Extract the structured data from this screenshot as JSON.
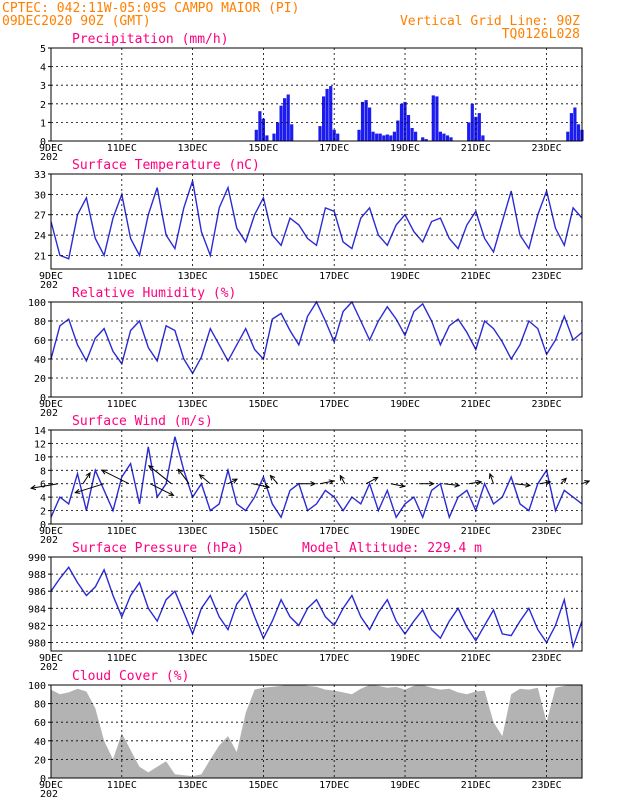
{
  "header": {
    "line1_left": "CPTEC:  042:11W-05:09S  CAMPO MAIOR (PI)",
    "line2_left": "09DEC2020 90Z (GMT)",
    "line2_right": "Vertical Grid Line: 90Z",
    "line3_right": "TQ0126L028"
  },
  "x_axis": {
    "start_day": 9,
    "end_day": 24,
    "ticks": [
      "9DEC",
      "11DEC",
      "13DEC",
      "15DEC",
      "17DEC",
      "19DEC",
      "21DEC",
      "23DEC"
    ],
    "tick_days": [
      9,
      11,
      13,
      15,
      17,
      19,
      21,
      23
    ],
    "stub_label": "202"
  },
  "colors": {
    "line": "#2b2bd6",
    "bar": "#1c1cf0",
    "cloud": "#b3b3b3",
    "title": "#ff0080",
    "header": "#ff8000"
  },
  "chart_data": [
    {
      "id": "precip",
      "type": "bar",
      "title": "Precipitation (mm/h)",
      "ylim": [
        0,
        5
      ],
      "yticks": [
        0,
        1,
        2,
        3,
        4,
        5
      ],
      "grid": true,
      "x": [
        14.8,
        14.9,
        15.0,
        15.1,
        15.3,
        15.4,
        15.5,
        15.6,
        15.7,
        15.8,
        16.6,
        16.7,
        16.8,
        16.9,
        17.0,
        17.1,
        17.7,
        17.8,
        17.9,
        18.0,
        18.1,
        18.2,
        18.3,
        18.4,
        18.5,
        18.6,
        18.7,
        18.8,
        18.9,
        19.0,
        19.1,
        19.2,
        19.3,
        19.5,
        19.6,
        19.8,
        19.9,
        20.0,
        20.1,
        20.2,
        20.3,
        20.8,
        20.9,
        21.0,
        21.1,
        21.2,
        23.6,
        23.7,
        23.8,
        23.9,
        24.0
      ],
      "values": [
        0.6,
        1.6,
        1.2,
        0.3,
        0.4,
        1.0,
        1.9,
        2.3,
        2.5,
        0.9,
        0.8,
        2.4,
        2.8,
        2.95,
        0.6,
        0.4,
        0.6,
        2.1,
        2.2,
        1.8,
        0.5,
        0.4,
        0.4,
        0.3,
        0.35,
        0.3,
        0.5,
        1.1,
        2.0,
        2.1,
        1.4,
        0.7,
        0.5,
        0.2,
        0.1,
        2.45,
        2.4,
        0.5,
        0.4,
        0.3,
        0.2,
        1.0,
        2.0,
        1.3,
        1.5,
        0.3,
        0.5,
        1.5,
        1.8,
        0.9,
        0.6
      ]
    },
    {
      "id": "temp",
      "type": "line",
      "title": "Surface Temperature (nC)",
      "ylim": [
        19,
        33
      ],
      "yticks": [
        21,
        24,
        27,
        30,
        33
      ],
      "grid": true,
      "x": [
        9.0,
        9.25,
        9.5,
        9.75,
        10.0,
        10.25,
        10.5,
        10.75,
        11.0,
        11.25,
        11.5,
        11.75,
        12.0,
        12.25,
        12.5,
        12.75,
        13.0,
        13.25,
        13.5,
        13.75,
        14.0,
        14.25,
        14.5,
        14.75,
        15.0,
        15.25,
        15.5,
        15.75,
        16.0,
        16.25,
        16.5,
        16.75,
        17.0,
        17.25,
        17.5,
        17.75,
        18.0,
        18.25,
        18.5,
        18.75,
        19.0,
        19.25,
        19.5,
        19.75,
        20.0,
        20.25,
        20.5,
        20.75,
        21.0,
        21.25,
        21.5,
        21.75,
        22.0,
        22.25,
        22.5,
        22.75,
        23.0,
        23.25,
        23.5,
        23.75,
        24.0
      ],
      "values": [
        26,
        21,
        20.5,
        27,
        29.5,
        23.5,
        21,
        26.5,
        30,
        23.5,
        21,
        27,
        31,
        24,
        22,
        28,
        32,
        24.5,
        21,
        28,
        31,
        25,
        23,
        27,
        29.5,
        24,
        22.5,
        26.5,
        25.5,
        23.5,
        22.5,
        28,
        27.5,
        23,
        22,
        26.5,
        28,
        24,
        22.5,
        25.5,
        27,
        24.5,
        23,
        26,
        26.5,
        23.5,
        22,
        25.5,
        27.5,
        23.5,
        21.5,
        26,
        30.5,
        24,
        22,
        27,
        30.5,
        25,
        22.5,
        28,
        26.5
      ]
    },
    {
      "id": "rh",
      "type": "line",
      "title": "Relative Humidity (%)",
      "ylim": [
        0,
        100
      ],
      "yticks": [
        0,
        20,
        40,
        60,
        80,
        100
      ],
      "grid": true,
      "x": [
        9.0,
        9.25,
        9.5,
        9.75,
        10.0,
        10.25,
        10.5,
        10.75,
        11.0,
        11.25,
        11.5,
        11.75,
        12.0,
        12.25,
        12.5,
        12.75,
        13.0,
        13.25,
        13.5,
        13.75,
        14.0,
        14.25,
        14.5,
        14.75,
        15.0,
        15.25,
        15.5,
        15.75,
        16.0,
        16.25,
        16.5,
        16.75,
        17.0,
        17.25,
        17.5,
        17.75,
        18.0,
        18.25,
        18.5,
        18.75,
        19.0,
        19.25,
        19.5,
        19.75,
        20.0,
        20.25,
        20.5,
        20.75,
        21.0,
        21.25,
        21.5,
        21.75,
        22.0,
        22.25,
        22.5,
        22.75,
        23.0,
        23.25,
        23.5,
        23.75,
        24.0
      ],
      "values": [
        40,
        75,
        82,
        55,
        38,
        62,
        72,
        48,
        35,
        70,
        80,
        52,
        38,
        75,
        70,
        40,
        25,
        42,
        72,
        55,
        38,
        55,
        72,
        50,
        40,
        82,
        88,
        70,
        55,
        85,
        100,
        80,
        58,
        90,
        100,
        80,
        60,
        80,
        95,
        82,
        65,
        90,
        98,
        80,
        55,
        75,
        82,
        68,
        50,
        80,
        72,
        58,
        40,
        55,
        80,
        72,
        45,
        60,
        85,
        60,
        68
      ]
    },
    {
      "id": "wind",
      "type": "line",
      "title": "Surface Wind (m/s)",
      "ylim": [
        0,
        14
      ],
      "yticks": [
        0,
        2,
        4,
        6,
        8,
        10,
        12,
        14
      ],
      "grid": true,
      "x": [
        9.0,
        9.25,
        9.5,
        9.75,
        10.0,
        10.25,
        10.5,
        10.75,
        11.0,
        11.25,
        11.5,
        11.75,
        12.0,
        12.25,
        12.5,
        12.75,
        13.0,
        13.25,
        13.5,
        13.75,
        14.0,
        14.25,
        14.5,
        14.75,
        15.0,
        15.25,
        15.5,
        15.75,
        16.0,
        16.25,
        16.5,
        16.75,
        17.0,
        17.25,
        17.5,
        17.75,
        18.0,
        18.25,
        18.5,
        18.75,
        19.0,
        19.25,
        19.5,
        19.75,
        20.0,
        20.25,
        20.5,
        20.75,
        21.0,
        21.25,
        21.5,
        21.75,
        22.0,
        22.25,
        22.5,
        22.75,
        23.0,
        23.25,
        23.5,
        23.75,
        24.0
      ],
      "values": [
        1,
        4,
        3,
        7.5,
        2,
        8,
        5,
        2,
        7,
        9,
        3,
        11.5,
        4,
        6,
        13,
        8,
        4,
        6,
        2,
        3,
        8,
        3,
        2,
        4,
        7,
        3,
        1,
        5,
        6,
        2,
        3,
        5,
        4,
        2,
        4,
        3,
        6,
        2,
        5,
        1,
        3,
        4,
        1,
        5,
        6,
        1,
        4,
        5,
        2,
        6,
        3,
        4,
        7,
        3,
        2,
        6,
        8,
        2,
        5,
        4,
        3
      ],
      "vectors": [
        {
          "x": 9.2,
          "u": 3,
          "v": 0.5
        },
        {
          "x": 9.9,
          "u": -0.8,
          "v": -1.2
        },
        {
          "x": 10.5,
          "u": 3.2,
          "v": 1
        },
        {
          "x": 11.2,
          "u": 3,
          "v": -1.5
        },
        {
          "x": 11.8,
          "u": -2.6,
          "v": 1.3
        },
        {
          "x": 12.4,
          "u": 2.5,
          "v": -2
        },
        {
          "x": 12.9,
          "u": 1.2,
          "v": -1.6
        },
        {
          "x": 13.5,
          "u": 1.2,
          "v": -1
        },
        {
          "x": 14.0,
          "u": -1,
          "v": -0.5
        },
        {
          "x": 14.7,
          "u": -1.8,
          "v": 0.4
        },
        {
          "x": 15.4,
          "u": 0.8,
          "v": -0.9
        },
        {
          "x": 16.0,
          "u": -1.8,
          "v": 0
        },
        {
          "x": 16.6,
          "u": -1.5,
          "v": -0.3
        },
        {
          "x": 17.3,
          "u": 0.5,
          "v": -0.9
        },
        {
          "x": 17.9,
          "u": -1.3,
          "v": -0.7
        },
        {
          "x": 18.6,
          "u": -1.5,
          "v": 0.3
        },
        {
          "x": 19.4,
          "u": -1.6,
          "v": 0
        },
        {
          "x": 20.1,
          "u": -1.7,
          "v": 0.2
        },
        {
          "x": 20.8,
          "u": -1.4,
          "v": -0.2
        },
        {
          "x": 21.5,
          "u": 0.4,
          "v": -1.1
        },
        {
          "x": 22.1,
          "u": -1.7,
          "v": 0.2
        },
        {
          "x": 22.8,
          "u": -1.2,
          "v": -0.2
        },
        {
          "x": 23.4,
          "u": -0.6,
          "v": -0.6
        },
        {
          "x": 24.0,
          "u": -0.8,
          "v": -0.3
        }
      ]
    },
    {
      "id": "pres",
      "type": "line",
      "title": "Surface Pressure (hPa)",
      "annotation": "Model Altitude: 229.4 m",
      "ylim": [
        979,
        990
      ],
      "yticks": [
        980,
        982,
        984,
        986,
        988,
        990
      ],
      "grid": true,
      "x": [
        9.0,
        9.25,
        9.5,
        9.75,
        10.0,
        10.25,
        10.5,
        10.75,
        11.0,
        11.25,
        11.5,
        11.75,
        12.0,
        12.25,
        12.5,
        12.75,
        13.0,
        13.25,
        13.5,
        13.75,
        14.0,
        14.25,
        14.5,
        14.75,
        15.0,
        15.25,
        15.5,
        15.75,
        16.0,
        16.25,
        16.5,
        16.75,
        17.0,
        17.25,
        17.5,
        17.75,
        18.0,
        18.25,
        18.5,
        18.75,
        19.0,
        19.25,
        19.5,
        19.75,
        20.0,
        20.25,
        20.5,
        20.75,
        21.0,
        21.25,
        21.5,
        21.75,
        22.0,
        22.25,
        22.5,
        22.75,
        23.0,
        23.25,
        23.5,
        23.75,
        24.0
      ],
      "values": [
        986,
        987.5,
        988.8,
        987,
        985.5,
        986.5,
        988.5,
        985.5,
        983,
        985.5,
        987,
        984,
        982.5,
        985,
        986,
        983.5,
        981,
        984,
        985.5,
        983,
        981.5,
        984.5,
        985.8,
        983,
        980.5,
        982.5,
        985,
        983,
        982,
        984,
        985,
        983,
        982,
        984,
        985.5,
        983,
        981.5,
        983.5,
        985,
        982.5,
        981,
        982.5,
        983.8,
        981.5,
        980.5,
        982.5,
        984,
        981.8,
        980.2,
        982,
        983.8,
        981,
        980.8,
        982.5,
        984,
        981.5,
        980,
        982,
        985,
        979.5,
        982.5
      ]
    },
    {
      "id": "cloud",
      "type": "area",
      "title": "Cloud Cover (%)",
      "ylim": [
        0,
        100
      ],
      "yticks": [
        0,
        20,
        40,
        60,
        80,
        100
      ],
      "grid": true,
      "x": [
        9.0,
        9.25,
        9.5,
        9.75,
        10.0,
        10.25,
        10.5,
        10.75,
        11.0,
        11.25,
        11.5,
        11.75,
        12.0,
        12.25,
        12.5,
        12.75,
        13.0,
        13.25,
        13.5,
        13.75,
        14.0,
        14.25,
        14.5,
        14.75,
        15.0,
        15.25,
        15.5,
        15.75,
        16.0,
        16.25,
        16.5,
        16.75,
        17.0,
        17.25,
        17.5,
        17.75,
        18.0,
        18.25,
        18.5,
        18.75,
        19.0,
        19.25,
        19.5,
        19.75,
        20.0,
        20.25,
        20.5,
        20.75,
        21.0,
        21.25,
        21.5,
        21.75,
        22.0,
        22.25,
        22.5,
        22.75,
        23.0,
        23.25,
        23.5,
        23.75,
        24.0
      ],
      "values": [
        95,
        90,
        92,
        96,
        93,
        75,
        40,
        20,
        48,
        30,
        12,
        6,
        12,
        18,
        4,
        3,
        2,
        4,
        20,
        35,
        45,
        28,
        70,
        95,
        97,
        98,
        99,
        100,
        100,
        99,
        98,
        95,
        94,
        92,
        90,
        96,
        100,
        99,
        97,
        98,
        95,
        99,
        100,
        97,
        95,
        96,
        92,
        90,
        93,
        94,
        60,
        45,
        90,
        96,
        95,
        97,
        60,
        97,
        99,
        100,
        100
      ]
    }
  ]
}
